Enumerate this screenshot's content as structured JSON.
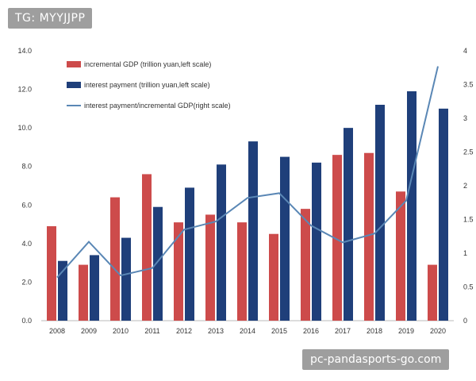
{
  "overlays": {
    "tg_label": "TG: MYYJJPP",
    "url_label": "pc-pandasports-go.com"
  },
  "colors": {
    "incremental_gdp": "#cd4b4b",
    "interest_payment": "#1f3f7a",
    "ratio_line": "#5a87b5"
  },
  "chart_data": {
    "type": "bar",
    "categories": [
      "2008",
      "2009",
      "2010",
      "2011",
      "2012",
      "2013",
      "2014",
      "2015",
      "2016",
      "2017",
      "2018",
      "2019",
      "2020"
    ],
    "series": [
      {
        "name": "incremental GDP (trillion yuan,left scale)",
        "kind": "bar",
        "axis": "left",
        "values": [
          4.9,
          2.9,
          6.4,
          7.6,
          5.1,
          5.5,
          5.1,
          4.5,
          5.8,
          8.6,
          8.7,
          6.7,
          2.9
        ]
      },
      {
        "name": "interest payment (trillion yuan,left scale)",
        "kind": "bar",
        "axis": "left",
        "values": [
          3.1,
          3.4,
          4.3,
          5.9,
          6.9,
          8.1,
          9.3,
          8.5,
          8.2,
          10.0,
          11.2,
          11.9,
          11.0
        ]
      },
      {
        "name": "interest payment/incremental GDP(right scale)",
        "kind": "line",
        "axis": "right",
        "values": [
          0.64,
          1.17,
          0.67,
          0.78,
          1.35,
          1.47,
          1.82,
          1.89,
          1.41,
          1.16,
          1.29,
          1.78,
          3.77
        ]
      }
    ],
    "left_axis": {
      "ylim": [
        0,
        14
      ],
      "ticks": [
        "0.0",
        "2.0",
        "4.0",
        "6.0",
        "8.0",
        "10.0",
        "12.0",
        "14.0"
      ]
    },
    "right_axis": {
      "ylim": [
        0,
        4
      ],
      "ticks": [
        "0",
        "0.5",
        "1",
        "1.5",
        "2",
        "2.5",
        "3",
        "3.5",
        "4"
      ]
    },
    "legend_position": "top-left",
    "grid": false
  }
}
